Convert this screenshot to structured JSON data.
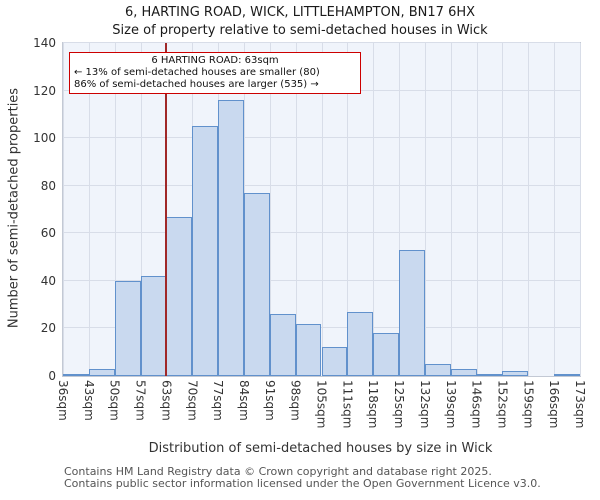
{
  "chart_data": {
    "type": "bar",
    "title": "6, HARTING ROAD, WICK, LITTLEHAMPTON, BN17 6HX",
    "subtitle": "Size of property relative to semi-detached houses in Wick",
    "xlabel": "Distribution of semi-detached houses by size in Wick",
    "ylabel": "Number of semi-detached properties",
    "bin_edges": [
      36,
      43,
      50,
      57,
      63,
      70,
      77,
      84,
      91,
      98,
      105,
      111,
      118,
      125,
      132,
      139,
      146,
      152,
      159,
      166,
      173
    ],
    "bin_labels": [
      "36sqm",
      "43sqm",
      "50sqm",
      "57sqm",
      "63sqm",
      "70sqm",
      "77sqm",
      "84sqm",
      "91sqm",
      "98sqm",
      "105sqm",
      "111sqm",
      "118sqm",
      "125sqm",
      "132sqm",
      "139sqm",
      "146sqm",
      "152sqm",
      "159sqm",
      "166sqm",
      "173sqm"
    ],
    "values": [
      1,
      3,
      40,
      42,
      67,
      105,
      116,
      77,
      26,
      22,
      12,
      27,
      18,
      53,
      5,
      3,
      1,
      2,
      0,
      1
    ],
    "ylim": [
      0,
      140
    ],
    "yticks": [
      0,
      20,
      40,
      60,
      80,
      100,
      120,
      140
    ],
    "grid": true,
    "marker": {
      "value": 63
    },
    "annotation": {
      "line1": "6 HARTING ROAD: 63sqm",
      "line2": "← 13% of semi-detached houses are smaller (80)",
      "line3": "86% of semi-detached houses are larger (535) →"
    },
    "colors": {
      "bar_fill": "#c9d9ef",
      "bar_border": "#6191cc",
      "marker_line": "#a02828",
      "annotation_border": "#cc0000",
      "grid": "#d8dde8",
      "plot_bg": "#f0f4fb"
    }
  },
  "footer": {
    "line1": "Contains HM Land Registry data © Crown copyright and database right 2025.",
    "line2": "Contains public sector information licensed under the Open Government Licence v3.0."
  }
}
